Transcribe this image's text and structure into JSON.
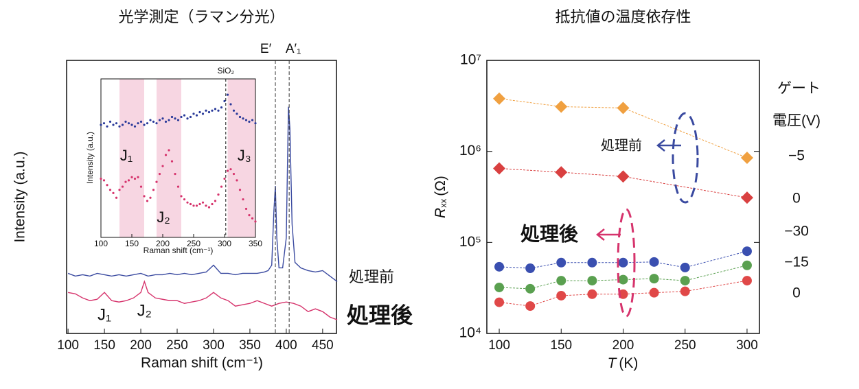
{
  "chart_data": [
    {
      "type": "line",
      "title": "光学測定（ラマン分光）",
      "x_label": "Raman shift (cm⁻¹)",
      "y_label": "Intensity (a.u.)",
      "xlim": [
        98,
        469
      ],
      "ylim": [
        0,
        100
      ],
      "xticks": [
        100,
        150,
        200,
        250,
        300,
        350,
        400,
        450
      ],
      "peaks": [
        {
          "label": "E′",
          "x": 385
        },
        {
          "label": "A′₁",
          "x": 404
        }
      ],
      "annotations": [
        {
          "text": "J₁",
          "x": 150
        },
        {
          "text": "J₂",
          "x": 205
        }
      ],
      "series": [
        {
          "name": "処理前",
          "color": "#3a4aa0",
          "x": [
            100,
            110,
            120,
            130,
            140,
            150,
            160,
            170,
            180,
            190,
            200,
            210,
            220,
            230,
            240,
            250,
            260,
            270,
            280,
            290,
            300,
            310,
            320,
            330,
            340,
            350,
            360,
            370,
            375,
            380,
            383,
            385,
            387,
            390,
            395,
            400,
            403,
            405,
            408,
            412,
            420,
            430,
            440,
            450,
            460,
            470
          ],
          "values": [
            22,
            21,
            21.5,
            21,
            22,
            21.5,
            21,
            21.5,
            21,
            21.5,
            22,
            21,
            21.5,
            21.5,
            22,
            21.5,
            22,
            21.5,
            22,
            22.5,
            25,
            22,
            22,
            21.5,
            22,
            22,
            22,
            22.5,
            23,
            25,
            45,
            54,
            35,
            24,
            24,
            35,
            83,
            75,
            40,
            26,
            24,
            23,
            22.5,
            23,
            21,
            19
          ]
        },
        {
          "name": "処理後",
          "color": "#d6336c",
          "x": [
            100,
            110,
            120,
            130,
            140,
            150,
            160,
            170,
            180,
            190,
            200,
            205,
            210,
            220,
            230,
            240,
            250,
            260,
            270,
            280,
            290,
            300,
            310,
            320,
            330,
            340,
            350,
            360,
            370,
            380,
            390,
            400,
            410,
            420,
            430,
            440,
            450,
            460,
            470
          ],
          "values": [
            15,
            14.5,
            13,
            12,
            12.5,
            15,
            12,
            11.5,
            12,
            13,
            15,
            19,
            15,
            13,
            12.5,
            12,
            12,
            11,
            11.5,
            12,
            13,
            15,
            13,
            12,
            10,
            10.5,
            11,
            12,
            11,
            10,
            11,
            11.5,
            11,
            10,
            8,
            9,
            8,
            6,
            5
          ]
        }
      ],
      "inset": {
        "type": "scatter",
        "x_label": "Raman shift (cm⁻¹)",
        "y_label": "Intensity (a.u.)",
        "xlim": [
          100,
          350
        ],
        "ylim": [
          0,
          100
        ],
        "xticks": [
          100,
          150,
          200,
          250,
          300,
          350
        ],
        "marker_line": {
          "label": "SiO₂",
          "x": 302
        },
        "bands": [
          {
            "label": "J₁",
            "range": [
              130,
              170
            ]
          },
          {
            "label": "J₂",
            "range": [
              190,
              230
            ]
          },
          {
            "label": "J₃",
            "range": [
              305,
              350
            ]
          }
        ],
        "x": [
          100,
          105,
          110,
          115,
          120,
          125,
          130,
          135,
          140,
          145,
          150,
          155,
          160,
          165,
          170,
          175,
          180,
          185,
          190,
          195,
          200,
          205,
          210,
          215,
          220,
          225,
          230,
          235,
          240,
          245,
          250,
          255,
          260,
          265,
          270,
          275,
          280,
          285,
          290,
          295,
          300,
          305,
          310,
          315,
          320,
          325,
          330,
          335,
          340,
          345,
          350
        ],
        "series": [
          {
            "color": "#2a3a9a",
            "values": [
              71,
              72,
              70,
              73,
              71,
              72,
              70,
              71,
              73,
              72,
              71,
              70,
              72,
              73,
              71,
              72,
              74,
              73,
              72,
              74,
              75,
              73,
              74,
              76,
              75,
              74,
              76,
              77,
              75,
              76,
              78,
              77,
              79,
              78,
              80,
              79,
              80,
              81,
              80,
              82,
              86,
              90,
              84,
              80,
              78,
              76,
              75,
              74,
              73,
              74,
              72
            ]
          },
          {
            "color": "#d6336c",
            "values": [
              37,
              36,
              33,
              30,
              28,
              25,
              30,
              32,
              35,
              36,
              38,
              37,
              38,
              32,
              26,
              23,
              25,
              30,
              35,
              40,
              45,
              52,
              55,
              48,
              40,
              32,
              26,
              24,
              22,
              21,
              20,
              20,
              21,
              22,
              20,
              19,
              21,
              23,
              27,
              32,
              37,
              42,
              43,
              40,
              36,
              30,
              24,
              18,
              14,
              12,
              10
            ]
          }
        ]
      }
    },
    {
      "type": "line",
      "log_y": true,
      "title": "抵抗値の温度依存性",
      "x_label": {
        "symbol": "T",
        "unit": "(K)"
      },
      "y_label": {
        "symbol": "R",
        "subscript": "xx",
        "unit": "(Ω)"
      },
      "xlim": [
        90,
        310
      ],
      "ylim": [
        10000,
        10000000
      ],
      "xticks": [
        100,
        150,
        200,
        250,
        300
      ],
      "yticks": [
        {
          "value": 10000,
          "label": "10⁴"
        },
        {
          "value": 100000,
          "label": "10⁵"
        },
        {
          "value": 1000000,
          "label": "10⁶"
        },
        {
          "value": 10000000,
          "label": "10⁷"
        }
      ],
      "legend_title": [
        "ゲート",
        "電圧(V)"
      ],
      "annotations": [
        {
          "text": "処理前",
          "color": "#3a4aa0"
        },
        {
          "text": "処理後",
          "color": "#d6336c"
        }
      ],
      "series": [
        {
          "name": "−5",
          "color": "#f0a040",
          "marker": "diamond",
          "x": [
            100,
            150,
            200,
            300
          ],
          "values": [
            3800000,
            3100000,
            3000000,
            850000
          ]
        },
        {
          "name": "0",
          "color": "#d94040",
          "marker": "diamond",
          "x": [
            100,
            150,
            200,
            300
          ],
          "values": [
            650000,
            590000,
            530000,
            310000
          ]
        },
        {
          "name": "−30",
          "color": "#3a4fb0",
          "marker": "circle",
          "x": [
            100,
            125,
            150,
            175,
            200,
            225,
            250,
            300
          ],
          "values": [
            54000,
            52000,
            60000,
            60000,
            60000,
            61000,
            53000,
            80000
          ]
        },
        {
          "name": "−15",
          "color": "#5aa050",
          "marker": "circle",
          "x": [
            100,
            125,
            150,
            175,
            200,
            225,
            250,
            300
          ],
          "values": [
            32000,
            31000,
            38000,
            38000,
            39000,
            40000,
            38000,
            56000
          ]
        },
        {
          "name": "0",
          "color": "#e04848",
          "marker": "circle",
          "x": [
            100,
            125,
            150,
            175,
            200,
            225,
            250,
            300
          ],
          "values": [
            22000,
            20000,
            26000,
            27000,
            27000,
            28000,
            29000,
            38000
          ]
        }
      ]
    }
  ]
}
